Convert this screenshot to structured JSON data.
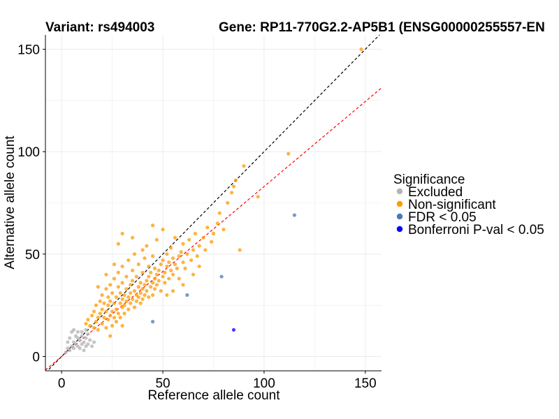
{
  "chart_data": {
    "type": "scatter",
    "title_left": "Variant: rs494003",
    "title_right": "Gene: RP11-770G2.2-AP5B1 (ENSG00000255557-EN",
    "xlabel": "Reference allele count",
    "ylabel": "Alternative allele count",
    "xlim": [
      -8,
      158
    ],
    "ylim": [
      -7,
      157
    ],
    "xticks": [
      0,
      50,
      100,
      150
    ],
    "yticks": [
      0,
      50,
      100,
      150
    ],
    "grid": true,
    "legend": {
      "title": "Significance",
      "placement": "right",
      "entries": [
        {
          "label": "Excluded",
          "color": "#b3b3b3"
        },
        {
          "label": "Non-significant",
          "color": "#ff9a00"
        },
        {
          "label": "FDR < 0.05",
          "color": "#4a79b8"
        },
        {
          "label": "Bonferroni P-val < 0.05",
          "color": "#0000ff"
        }
      ]
    },
    "reference_lines": [
      {
        "name": "identity",
        "slope": 1.0,
        "intercept": 0,
        "color": "#000000",
        "dash": true
      },
      {
        "name": "fit",
        "slope": 0.83,
        "intercept": 0,
        "color": "#ff0000",
        "dash": true
      }
    ],
    "series": [
      {
        "group": "Excluded",
        "color": "#b3b3b3",
        "points": [
          [
            2,
            2
          ],
          [
            3,
            4
          ],
          [
            4,
            3
          ],
          [
            3,
            7
          ],
          [
            5,
            5
          ],
          [
            6,
            4
          ],
          [
            4,
            9
          ],
          [
            5,
            12
          ],
          [
            6,
            7
          ],
          [
            7,
            6
          ],
          [
            7,
            10
          ],
          [
            8,
            5
          ],
          [
            8,
            9
          ],
          [
            9,
            4
          ],
          [
            9,
            8
          ],
          [
            10,
            6
          ],
          [
            10,
            12
          ],
          [
            11,
            7
          ],
          [
            11,
            3
          ],
          [
            12,
            9
          ],
          [
            12,
            5
          ],
          [
            13,
            6
          ],
          [
            14,
            8
          ],
          [
            15,
            5
          ],
          [
            16,
            7
          ],
          [
            6,
            13
          ],
          [
            8,
            12
          ],
          [
            10,
            10
          ],
          [
            13,
            11
          ],
          [
            12,
            13
          ]
        ]
      },
      {
        "group": "Non-significant",
        "color": "#ff9a00",
        "points": [
          [
            12,
            16
          ],
          [
            13,
            18
          ],
          [
            14,
            15
          ],
          [
            15,
            20
          ],
          [
            16,
            14
          ],
          [
            16,
            22
          ],
          [
            17,
            17
          ],
          [
            17,
            25
          ],
          [
            18,
            19
          ],
          [
            18,
            13
          ],
          [
            19,
            21
          ],
          [
            19,
            27
          ],
          [
            20,
            16
          ],
          [
            20,
            23
          ],
          [
            20,
            30
          ],
          [
            21,
            19
          ],
          [
            21,
            26
          ],
          [
            22,
            14
          ],
          [
            22,
            22
          ],
          [
            22,
            33
          ],
          [
            23,
            18
          ],
          [
            23,
            25
          ],
          [
            23,
            29
          ],
          [
            24,
            20
          ],
          [
            24,
            27
          ],
          [
            24,
            35
          ],
          [
            25,
            15
          ],
          [
            25,
            22
          ],
          [
            25,
            31
          ],
          [
            26,
            19
          ],
          [
            26,
            26
          ],
          [
            26,
            38
          ],
          [
            27,
            23
          ],
          [
            27,
            29
          ],
          [
            27,
            17
          ],
          [
            28,
            21
          ],
          [
            28,
            34
          ],
          [
            28,
            41
          ],
          [
            29,
            26
          ],
          [
            29,
            19
          ],
          [
            29,
            31
          ],
          [
            30,
            24
          ],
          [
            30,
            28
          ],
          [
            30,
            36
          ],
          [
            30,
            44
          ],
          [
            31,
            21
          ],
          [
            31,
            30
          ],
          [
            31,
            25
          ],
          [
            32,
            27
          ],
          [
            32,
            33
          ],
          [
            32,
            39
          ],
          [
            33,
            23
          ],
          [
            33,
            29
          ],
          [
            33,
            47
          ],
          [
            34,
            26
          ],
          [
            34,
            35
          ],
          [
            34,
            31
          ],
          [
            35,
            28
          ],
          [
            35,
            37
          ],
          [
            35,
            42
          ],
          [
            36,
            24
          ],
          [
            36,
            32
          ],
          [
            36,
            50
          ],
          [
            37,
            30
          ],
          [
            37,
            27
          ],
          [
            37,
            39
          ],
          [
            38,
            34
          ],
          [
            38,
            29
          ],
          [
            38,
            45
          ],
          [
            39,
            31
          ],
          [
            39,
            36
          ],
          [
            39,
            26
          ],
          [
            40,
            33
          ],
          [
            40,
            41
          ],
          [
            40,
            28
          ],
          [
            41,
            35
          ],
          [
            41,
            30
          ],
          [
            41,
            48
          ],
          [
            42,
            37
          ],
          [
            42,
            32
          ],
          [
            42,
            54
          ],
          [
            43,
            29
          ],
          [
            43,
            39
          ],
          [
            43,
            44
          ],
          [
            44,
            34
          ],
          [
            44,
            41
          ],
          [
            45,
            36
          ],
          [
            45,
            30
          ],
          [
            45,
            49
          ],
          [
            46,
            38
          ],
          [
            46,
            43
          ],
          [
            46,
            33
          ],
          [
            47,
            40
          ],
          [
            47,
            35
          ],
          [
            47,
            57
          ],
          [
            48,
            42
          ],
          [
            48,
            37
          ],
          [
            49,
            45
          ],
          [
            49,
            32
          ],
          [
            50,
            39
          ],
          [
            50,
            47
          ],
          [
            50,
            62
          ],
          [
            51,
            41
          ],
          [
            51,
            36
          ],
          [
            52,
            44
          ],
          [
            52,
            50
          ],
          [
            53,
            38
          ],
          [
            53,
            46
          ],
          [
            54,
            42
          ],
          [
            54,
            53
          ],
          [
            55,
            40
          ],
          [
            55,
            48
          ],
          [
            56,
            45
          ],
          [
            56,
            58
          ],
          [
            57,
            43
          ],
          [
            58,
            49
          ],
          [
            58,
            38
          ],
          [
            59,
            51
          ],
          [
            60,
            46
          ],
          [
            60,
            55
          ],
          [
            61,
            43
          ],
          [
            62,
            50
          ],
          [
            63,
            57
          ],
          [
            64,
            47
          ],
          [
            65,
            52
          ],
          [
            66,
            60
          ],
          [
            67,
            49
          ],
          [
            68,
            54
          ],
          [
            70,
            58
          ],
          [
            71,
            52
          ],
          [
            72,
            63
          ],
          [
            74,
            56
          ],
          [
            75,
            60
          ],
          [
            77,
            65
          ],
          [
            78,
            70
          ],
          [
            80,
            62
          ],
          [
            82,
            75
          ],
          [
            84,
            80
          ],
          [
            85,
            83
          ],
          [
            86,
            86
          ],
          [
            88,
            52
          ],
          [
            90,
            93
          ],
          [
            97,
            78
          ],
          [
            112,
            99
          ],
          [
            148,
            150
          ],
          [
            28,
            55
          ],
          [
            30,
            60
          ],
          [
            35,
            58
          ],
          [
            40,
            52
          ],
          [
            45,
            64
          ],
          [
            52,
            30
          ],
          [
            55,
            32
          ],
          [
            60,
            35
          ],
          [
            65,
            40
          ],
          [
            68,
            44
          ],
          [
            24,
            10
          ],
          [
            30,
            15
          ],
          [
            22,
            40
          ],
          [
            18,
            34
          ],
          [
            26,
            45
          ]
        ]
      },
      {
        "group": "FDR < 0.05",
        "color": "#4a79b8",
        "points": [
          [
            45,
            17
          ],
          [
            62,
            30
          ],
          [
            79,
            39
          ],
          [
            115,
            69
          ]
        ]
      },
      {
        "group": "Bonferroni P-val < 0.05",
        "color": "#0000ff",
        "points": [
          [
            85,
            13
          ]
        ]
      }
    ]
  }
}
